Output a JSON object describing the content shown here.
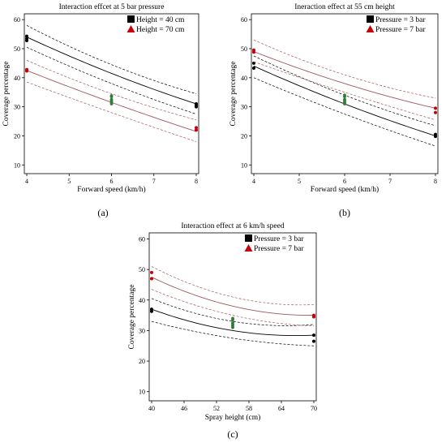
{
  "chart_data": [
    {
      "type": "line",
      "caption": "(a)",
      "title": "Interaction effcet at 5 bar pressure",
      "xlabel": "Forward speed (km/h)",
      "ylabel": "Coverage percentage",
      "xlim": [
        4,
        8
      ],
      "ylim": [
        7,
        62
      ],
      "xticks": [
        4,
        5,
        6,
        7,
        8
      ],
      "yticks": [
        10,
        20,
        30,
        40,
        50,
        60
      ],
      "legend_position": "top-right",
      "grid": false,
      "series": [
        {
          "name": "Height = 40 cm",
          "marker": "square",
          "color": "#000000",
          "fit": {
            "x": [
              4,
              6,
              8
            ],
            "y": [
              54,
              41.5,
              31
            ]
          },
          "ci_upper": {
            "x": [
              4,
              6,
              8
            ],
            "y": [
              58,
              44.5,
              34.5
            ]
          },
          "ci_lower": {
            "x": [
              4,
              6,
              8
            ],
            "y": [
              50.5,
              38,
              27.5
            ]
          },
          "points": {
            "x": [
              4,
              4,
              4,
              8,
              8,
              8
            ],
            "y": [
              54.3,
              53.5,
              52.8,
              31,
              30.5,
              30
            ]
          },
          "center_points": {
            "x": [
              6,
              6,
              6
            ],
            "y": [
              33.5,
              32,
              31
            ]
          }
        },
        {
          "name": "Height = 70 cm",
          "marker": "triangle",
          "color": "#c8000a",
          "fit": {
            "x": [
              4,
              6,
              8
            ],
            "y": [
              42.5,
              31.5,
              21.5
            ]
          },
          "ci_upper": {
            "x": [
              4,
              6,
              8
            ],
            "y": [
              46,
              34.5,
              25.5
            ]
          },
          "ci_lower": {
            "x": [
              4,
              6,
              8
            ],
            "y": [
              38.5,
              28,
              18
            ]
          },
          "points": {
            "x": [
              4,
              4,
              8,
              8
            ],
            "y": [
              42.8,
              42.3,
              22.8,
              22
            ]
          },
          "center_points": {
            "x": [
              6,
              6,
              6
            ],
            "y": [
              33.8,
              32.5,
              31.5
            ]
          }
        }
      ]
    },
    {
      "type": "line",
      "caption": "(b)",
      "title": "Ineraction effect at 55 cm height",
      "xlabel": "Forward speed (km/h)",
      "ylabel": "Coverage percentage",
      "xlim": [
        4,
        8
      ],
      "ylim": [
        7,
        62
      ],
      "xticks": [
        4,
        5,
        6,
        7,
        8
      ],
      "yticks": [
        10,
        20,
        30,
        40,
        50,
        60
      ],
      "legend_position": "top-right",
      "grid": false,
      "series": [
        {
          "name": "Pressure = 3 bar",
          "marker": "square",
          "color": "#000000",
          "fit": {
            "x": [
              4,
              6,
              8
            ],
            "y": [
              44,
              31,
              20
            ]
          },
          "ci_upper": {
            "x": [
              4,
              6,
              8
            ],
            "y": [
              47.5,
              34,
              23.5
            ]
          },
          "ci_lower": {
            "x": [
              4,
              6,
              8
            ],
            "y": [
              40,
              27.5,
              16.5
            ]
          },
          "points": {
            "x": [
              4,
              4,
              8,
              8
            ],
            "y": [
              45,
              43.3,
              20.5,
              19.8
            ]
          },
          "center_points": {
            "x": [
              6,
              6,
              6
            ],
            "y": [
              33.5,
              32,
              31
            ]
          }
        },
        {
          "name": "Pressure = 7 bar",
          "marker": "triangle",
          "color": "#c8000a",
          "fit": {
            "x": [
              4,
              6,
              8
            ],
            "y": [
              49,
              38,
              29.5
            ]
          },
          "ci_upper": {
            "x": [
              4,
              6,
              8
            ],
            "y": [
              53,
              41,
              33
            ]
          },
          "ci_lower": {
            "x": [
              4,
              6,
              8
            ],
            "y": [
              45.5,
              35,
              25.5
            ]
          },
          "points": {
            "x": [
              4,
              4,
              8,
              8
            ],
            "y": [
              49.5,
              48.8,
              29.5,
              28
            ]
          },
          "center_points": {
            "x": [
              6,
              6,
              6
            ],
            "y": [
              34,
              32.5,
              31.5
            ]
          }
        }
      ]
    },
    {
      "type": "line",
      "caption": "(c)",
      "title": "Interaction effect at 6 km/h speed",
      "xlabel": "Spray height (cm)",
      "ylabel": "Coverage percentage",
      "xlim": [
        40,
        70
      ],
      "ylim": [
        7,
        62
      ],
      "xticks": [
        40,
        46,
        52,
        58,
        64,
        70
      ],
      "yticks": [
        10,
        20,
        30,
        40,
        50,
        60
      ],
      "legend_position": "top-right",
      "grid": false,
      "series": [
        {
          "name": "Pressure = 3 bar",
          "marker": "square",
          "color": "#000000",
          "fit": {
            "x": [
              40,
              55,
              70
            ],
            "y": [
              37,
              30,
              28.5
            ]
          },
          "ci_upper": {
            "x": [
              40,
              55,
              70
            ],
            "y": [
              40.5,
              33,
              32
            ]
          },
          "ci_lower": {
            "x": [
              40,
              55,
              70
            ],
            "y": [
              33,
              27.5,
              25
            ]
          },
          "points": {
            "x": [
              40,
              40,
              70,
              70
            ],
            "y": [
              37,
              36.3,
              28.5,
              26.5
            ]
          },
          "center_points": {
            "x": [
              55,
              55,
              55
            ],
            "y": [
              33.5,
              32,
              31
            ]
          }
        },
        {
          "name": "Pressure = 7 bar",
          "marker": "triangle",
          "color": "#c8000a",
          "fit": {
            "x": [
              40,
              55,
              70
            ],
            "y": [
              47.5,
              38,
              35
            ]
          },
          "ci_upper": {
            "x": [
              40,
              55,
              70
            ],
            "y": [
              51,
              41,
              38.5
            ]
          },
          "ci_lower": {
            "x": [
              40,
              55,
              70
            ],
            "y": [
              43.5,
              35,
              31.5
            ]
          },
          "points": {
            "x": [
              40,
              40,
              70,
              70
            ],
            "y": [
              49,
              47,
              35,
              34.5
            ]
          },
          "center_points": {
            "x": [
              55,
              55,
              55
            ],
            "y": [
              34,
              32.5,
              31.5
            ]
          }
        }
      ]
    }
  ],
  "colors": {
    "series_dark": "#000000",
    "series_red": "#c8000a",
    "fit_red_line": "#a0565c",
    "center_point": "#2e7d32"
  }
}
